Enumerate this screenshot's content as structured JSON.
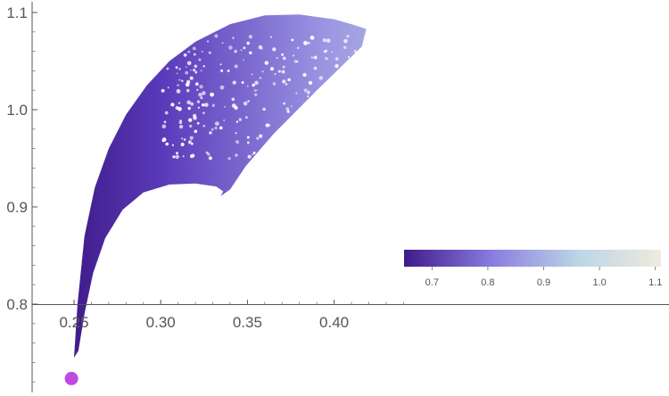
{
  "chart_data": {
    "type": "scatter",
    "title": "",
    "xlabel": "",
    "ylabel": "",
    "xlim": [
      0.2425,
      0.4215
    ],
    "ylim": [
      0.7235,
      1.1145
    ],
    "x_ticks": [
      "0.25",
      "0.30",
      "0.35",
      "0.40"
    ],
    "y_ticks": [
      "0.8",
      "0.9",
      "1.0",
      "1.1"
    ],
    "grid": false,
    "region": {
      "description_colored_by": "colorbar value",
      "upper_boundary": [
        {
          "x": 0.25,
          "y": 0.745
        },
        {
          "x": 0.252,
          "y": 0.8
        },
        {
          "x": 0.256,
          "y": 0.87
        },
        {
          "x": 0.262,
          "y": 0.92
        },
        {
          "x": 0.27,
          "y": 0.96
        },
        {
          "x": 0.28,
          "y": 0.995
        },
        {
          "x": 0.292,
          "y": 1.025
        },
        {
          "x": 0.305,
          "y": 1.05
        },
        {
          "x": 0.32,
          "y": 1.07
        },
        {
          "x": 0.34,
          "y": 1.088
        },
        {
          "x": 0.36,
          "y": 1.097
        },
        {
          "x": 0.38,
          "y": 1.098
        },
        {
          "x": 0.4,
          "y": 1.093
        },
        {
          "x": 0.412,
          "y": 1.087
        },
        {
          "x": 0.4185,
          "y": 1.083
        }
      ],
      "right_edge": [
        {
          "x": 0.4185,
          "y": 1.083
        },
        {
          "x": 0.416,
          "y": 1.065
        }
      ],
      "lower_boundary": [
        {
          "x": 0.416,
          "y": 1.065
        },
        {
          "x": 0.39,
          "y": 1.02
        },
        {
          "x": 0.365,
          "y": 0.975
        },
        {
          "x": 0.349,
          "y": 0.942
        },
        {
          "x": 0.34,
          "y": 0.918
        },
        {
          "x": 0.3345,
          "y": 0.911
        },
        {
          "x": 0.336,
          "y": 0.916
        },
        {
          "x": 0.332,
          "y": 0.921
        },
        {
          "x": 0.32,
          "y": 0.924
        },
        {
          "x": 0.305,
          "y": 0.923
        },
        {
          "x": 0.29,
          "y": 0.915
        },
        {
          "x": 0.278,
          "y": 0.897
        },
        {
          "x": 0.268,
          "y": 0.868
        },
        {
          "x": 0.261,
          "y": 0.832
        },
        {
          "x": 0.256,
          "y": 0.79
        },
        {
          "x": 0.2525,
          "y": 0.752
        }
      ]
    },
    "highlight_point": {
      "x": 0.2485,
      "y": 0.7235,
      "color": "#c04ae0"
    },
    "colorbar": {
      "ticks": [
        "0.7",
        "0.8",
        "0.9",
        "1.0",
        "1.1"
      ],
      "range": [
        0.65,
        1.11
      ],
      "colors": [
        "#3f1a8a",
        "#8a7fe0",
        "#bcd6e6",
        "#f0eadd"
      ],
      "placement": "bottom-right"
    },
    "colors": {
      "axis": "#555555",
      "low": "#3f1a8a",
      "mid_low": "#8a7fe0",
      "mid_high": "#bcd6e6",
      "high": "#f0eadd"
    }
  }
}
